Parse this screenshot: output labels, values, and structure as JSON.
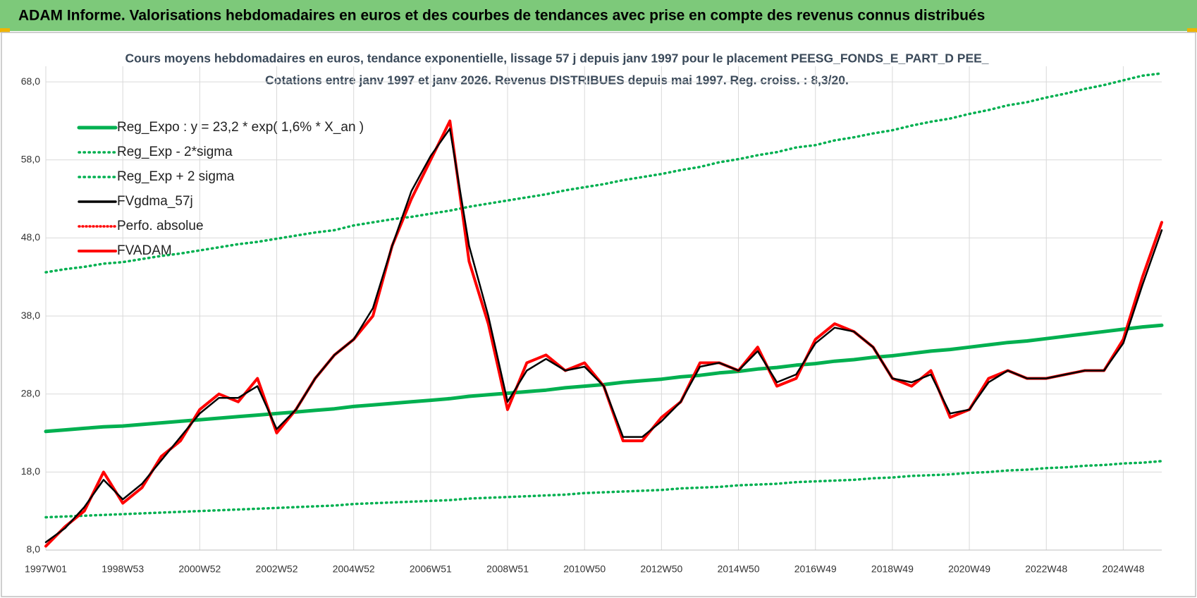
{
  "header": {
    "title": "ADAM Informe. Valorisations hebdomadaires en euros et des courbes de tendances avec prise en compte des revenus connus distribués"
  },
  "chart_data": {
    "type": "line",
    "title": "Cours moyens hebdomadaires en euros, tendance exponentielle, lissage 57 j depuis janv 1997 pour le placement PEESG_FONDS_E_PART_D PEE_",
    "subtitle": "Cotations entre janv 1997 et janv 2026. Revenus DISTRIBUES depuis mai 1997. Reg. croiss. : 8,3/20.",
    "categories": [
      "1997W01",
      null,
      null,
      null,
      "1998W53",
      null,
      null,
      null,
      "2000W52",
      null,
      null,
      null,
      "2002W52",
      null,
      null,
      null,
      "2004W52",
      null,
      null,
      null,
      "2006W51",
      null,
      null,
      null,
      "2008W51",
      null,
      null,
      null,
      "2010W50",
      null,
      null,
      null,
      "2012W50",
      null,
      null,
      null,
      "2014W50",
      null,
      null,
      null,
      "2016W49",
      null,
      null,
      null,
      "2018W49",
      null,
      null,
      null,
      "2020W49",
      null,
      null,
      null,
      "2022W48",
      null,
      null,
      null,
      "2024W48",
      null,
      null
    ],
    "ylim": [
      8,
      70
    ],
    "yticks": [
      {
        "value": 8,
        "label": "8,0"
      },
      {
        "value": 18,
        "label": "18,0"
      },
      {
        "value": 28,
        "label": "28,0"
      },
      {
        "value": 38,
        "label": "38,0"
      },
      {
        "value": 48,
        "label": "48,0"
      },
      {
        "value": 58,
        "label": "58,0"
      },
      {
        "value": 68,
        "label": "68,0"
      }
    ],
    "grid": true,
    "legend": "upper left",
    "series": [
      {
        "name": "Reg_Expo : y = 23,2 * exp( 1,6% *  X_an )",
        "color": "#00b050",
        "style": "solid",
        "width": 5,
        "values": [
          23.2,
          23.4,
          23.6,
          23.8,
          23.9,
          24.1,
          24.3,
          24.5,
          24.7,
          24.9,
          25.1,
          25.3,
          25.5,
          25.7,
          25.9,
          26.1,
          26.4,
          26.6,
          26.8,
          27.0,
          27.2,
          27.4,
          27.7,
          27.9,
          28.1,
          28.3,
          28.5,
          28.8,
          29.0,
          29.2,
          29.5,
          29.7,
          29.9,
          30.2,
          30.4,
          30.7,
          30.9,
          31.2,
          31.4,
          31.7,
          31.9,
          32.2,
          32.4,
          32.7,
          32.9,
          33.2,
          33.5,
          33.7,
          34.0,
          34.3,
          34.6,
          34.8,
          35.1,
          35.4,
          35.7,
          36.0,
          36.3,
          36.6,
          36.8
        ]
      },
      {
        "name": "Reg_Exp - 2*sigma",
        "color": "#00b050",
        "style": "dotted",
        "width": 3.5,
        "values": [
          12.2,
          12.3,
          12.4,
          12.5,
          12.6,
          12.7,
          12.8,
          12.9,
          13.0,
          13.1,
          13.2,
          13.3,
          13.4,
          13.5,
          13.6,
          13.7,
          13.9,
          14.0,
          14.1,
          14.2,
          14.3,
          14.4,
          14.6,
          14.7,
          14.8,
          14.9,
          15.0,
          15.1,
          15.3,
          15.4,
          15.5,
          15.6,
          15.7,
          15.9,
          16.0,
          16.1,
          16.3,
          16.4,
          16.5,
          16.7,
          16.8,
          16.9,
          17.0,
          17.2,
          17.3,
          17.5,
          17.6,
          17.7,
          17.9,
          18.0,
          18.2,
          18.3,
          18.5,
          18.6,
          18.8,
          18.9,
          19.1,
          19.2,
          19.4
        ]
      },
      {
        "name": "Reg_Exp + 2 sigma",
        "color": "#00b050",
        "style": "dotted",
        "width": 3.5,
        "values": [
          43.6,
          44.0,
          44.3,
          44.7,
          44.9,
          45.3,
          45.7,
          46.0,
          46.4,
          46.8,
          47.2,
          47.5,
          47.9,
          48.3,
          48.7,
          49.0,
          49.6,
          50.0,
          50.4,
          50.7,
          51.1,
          51.5,
          52.0,
          52.4,
          52.8,
          53.2,
          53.6,
          54.1,
          54.5,
          54.9,
          55.4,
          55.8,
          56.2,
          56.7,
          57.1,
          57.7,
          58.1,
          58.6,
          59.0,
          59.6,
          59.9,
          60.5,
          60.9,
          61.4,
          61.8,
          62.4,
          62.9,
          63.3,
          63.9,
          64.4,
          65.0,
          65.4,
          66.0,
          66.5,
          67.1,
          67.6,
          68.2,
          68.8,
          69.1
        ]
      },
      {
        "name": "FVgdma_57j",
        "color": "#000000",
        "style": "solid",
        "width": 2.5,
        "values": [
          9.0,
          10.8,
          13.5,
          17.0,
          14.5,
          16.5,
          19.5,
          22.5,
          25.5,
          27.5,
          27.5,
          29.0,
          23.5,
          26.0,
          30.0,
          33.0,
          35.0,
          39.0,
          47.0,
          54.0,
          58.5,
          62.0,
          47.0,
          38.0,
          27.0,
          31.0,
          32.5,
          31.0,
          31.5,
          29.0,
          22.5,
          22.5,
          24.5,
          27.0,
          31.5,
          32.0,
          31.0,
          33.5,
          29.5,
          30.5,
          34.5,
          36.5,
          36.0,
          34.0,
          30.0,
          29.5,
          30.5,
          25.5,
          26.0,
          29.5,
          31.0,
          30.0,
          30.0,
          30.5,
          31.0,
          31.0,
          34.5,
          42.0,
          49.0
        ]
      },
      {
        "name": "Perfo. absolue",
        "color": "#ff0000",
        "style": "dotted",
        "width": 2.5,
        "values": [
          8.5,
          11,
          13,
          18,
          14,
          16,
          20,
          22,
          26,
          28,
          27,
          30,
          23,
          26,
          30,
          33,
          35,
          38,
          47,
          53,
          58,
          63,
          45,
          37,
          26,
          32,
          33,
          31,
          32,
          29,
          22,
          22,
          25,
          27,
          32,
          32,
          31,
          34,
          29,
          30,
          35,
          37,
          36,
          34,
          30,
          29,
          31,
          25,
          26,
          30,
          31,
          30,
          30,
          30.5,
          31,
          31,
          35,
          43,
          50
        ]
      },
      {
        "name": "FVADAM",
        "color": "#ff0000",
        "style": "solid",
        "width": 4,
        "values": [
          8.5,
          11,
          13,
          18,
          14,
          16,
          20,
          22,
          26,
          28,
          27,
          30,
          23,
          26,
          30,
          33,
          35,
          38,
          47,
          53,
          58,
          63,
          45,
          37,
          26,
          32,
          33,
          31,
          32,
          29,
          22,
          22,
          25,
          27,
          32,
          32,
          31,
          34,
          29,
          30,
          35,
          37,
          36,
          34,
          30,
          29,
          31,
          25,
          26,
          30,
          31,
          30,
          30,
          30.5,
          31,
          31,
          35,
          43,
          50
        ]
      }
    ]
  }
}
